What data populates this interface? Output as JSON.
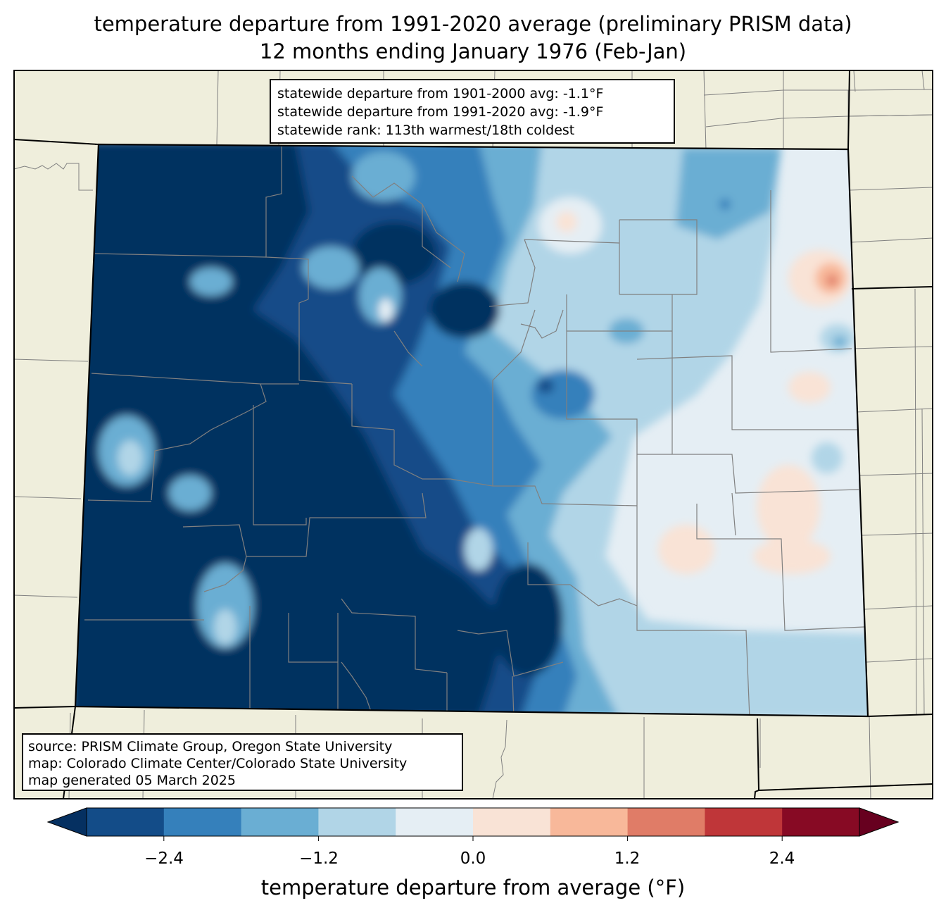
{
  "title": {
    "line1": "temperature departure from 1991-2020 average (preliminary PRISM data)",
    "line2": "12 months ending January 1976 (Feb-Jan)"
  },
  "stats": {
    "line1": "statewide departure from 1901-2000 avg: -1.1°F",
    "line2": "statewide departure from 1991-2020 avg: -1.9°F",
    "line3": "statewide rank: 113th warmest/18th coldest"
  },
  "source": {
    "line1": "source: PRISM Climate Group, Oregon State University",
    "line2": "map: Colorado Climate Center/Colorado State University",
    "line3": "map generated 05 March 2025"
  },
  "colorbar": {
    "label": "temperature departure from average (°F)",
    "ticks": [
      "−2.4",
      "−1.2",
      "0.0",
      "1.2",
      "2.4"
    ],
    "levels": [
      -3.0,
      -2.4,
      -1.8,
      -1.2,
      -0.6,
      0.0,
      0.6,
      1.2,
      1.8,
      2.4,
      3.0
    ],
    "colors": [
      "#053061",
      "#134c88",
      "#3580bb",
      "#6aaed3",
      "#b1d5e7",
      "#e5eef4",
      "#f9e3d6",
      "#f8b89a",
      "#e07c67",
      "#bf3639",
      "#870a24",
      "#67001f"
    ]
  },
  "colors": {
    "land_background": "#efeedc",
    "state_border": "#000000",
    "county_border": "#808080"
  }
}
